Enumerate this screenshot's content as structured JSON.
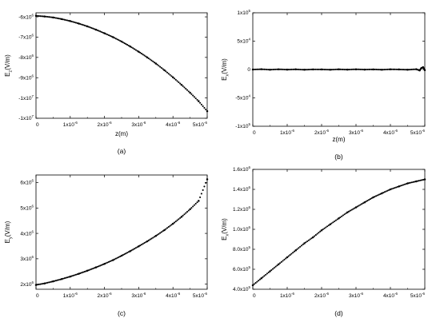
{
  "chart_data": [
    {
      "type": "scatter",
      "panel_label": "(a)",
      "xlabel": "z(m)",
      "ylabel": "E_z(V/m)",
      "ylabel_base": "E",
      "ylabel_sub": "z",
      "ylabel_unit": "(V/m)",
      "xlim": [
        0,
        5e-06
      ],
      "ylim": [
        -11000000,
        -5800000
      ],
      "x_ticks": [
        {
          "v": 0,
          "m": "0",
          "e": ""
        },
        {
          "v": 1e-06,
          "m": "1x10",
          "e": "-6"
        },
        {
          "v": 2e-06,
          "m": "2x10",
          "e": "-6"
        },
        {
          "v": 3e-06,
          "m": "3x10",
          "e": "-6"
        },
        {
          "v": 4e-06,
          "m": "4x10",
          "e": "-6"
        },
        {
          "v": 5e-06,
          "m": "5x10",
          "e": "-6"
        }
      ],
      "y_ticks": [
        {
          "v": -6000000,
          "m": "-6x10",
          "e": "6"
        },
        {
          "v": -7000000,
          "m": "-7x10",
          "e": "6"
        },
        {
          "v": -8000000,
          "m": "-8x10",
          "e": "6"
        },
        {
          "v": -9000000,
          "m": "-9x10",
          "e": "6"
        },
        {
          "v": -10000000,
          "m": "-1x10",
          "e": "7"
        },
        {
          "v": -11000000,
          "m": "-1x10",
          "e": "7"
        }
      ],
      "series": [
        {
          "x": [
            0,
            2.5e-07,
            5e-07,
            7.5e-07,
            1e-06,
            1.25e-06,
            1.5e-06,
            1.75e-06,
            2e-06,
            2.25e-06,
            2.5e-06,
            2.75e-06,
            3e-06,
            3.25e-06,
            3.5e-06,
            3.75e-06,
            4e-06,
            4.25e-06,
            4.5e-06,
            4.75e-06,
            5e-06
          ],
          "y": [
            -5950000,
            -5980000,
            -6030000,
            -6110000,
            -6210000,
            -6330000,
            -6470000,
            -6630000,
            -6810000,
            -7000000,
            -7220000,
            -7460000,
            -7720000,
            -8000000,
            -8300000,
            -8630000,
            -8980000,
            -9350000,
            -9740000,
            -10160000,
            -10650000
          ]
        }
      ]
    },
    {
      "type": "scatter",
      "panel_label": "(b)",
      "xlabel": "z(m)",
      "ylabel": "E_x(V/m)",
      "ylabel_base": "E",
      "ylabel_sub": "x",
      "ylabel_unit": "(V/m)",
      "xlim": [
        0,
        5e-06
      ],
      "ylim": [
        -100000,
        100000
      ],
      "x_ticks": [
        {
          "v": 0,
          "m": "0",
          "e": ""
        },
        {
          "v": 1e-06,
          "m": "1x10",
          "e": "-6"
        },
        {
          "v": 2e-06,
          "m": "2x10",
          "e": "-6"
        },
        {
          "v": 3e-06,
          "m": "3x10",
          "e": "-6"
        },
        {
          "v": 4e-06,
          "m": "4x10",
          "e": "-6"
        },
        {
          "v": 5e-06,
          "m": "5x10",
          "e": "-6"
        }
      ],
      "y_ticks": [
        {
          "v": 100000,
          "m": "1x10",
          "e": "5"
        },
        {
          "v": 50000,
          "m": "5x10",
          "e": "4"
        },
        {
          "v": 0,
          "m": "0",
          "e": ""
        },
        {
          "v": -50000,
          "m": "-5x10",
          "e": "4"
        },
        {
          "v": -100000,
          "m": "-1x10",
          "e": "5"
        }
      ],
      "series": [
        {
          "x": [
            0,
            2.5e-07,
            5e-07,
            7.5e-07,
            1e-06,
            1.25e-06,
            1.5e-06,
            1.75e-06,
            2e-06,
            2.25e-06,
            2.5e-06,
            2.75e-06,
            3e-06,
            3.25e-06,
            3.5e-06,
            3.75e-06,
            4e-06,
            4.25e-06,
            4.5e-06,
            4.75e-06,
            4.85e-06,
            4.9e-06,
            4.95e-06,
            5e-06
          ],
          "y": [
            0,
            500,
            -300,
            400,
            -200,
            300,
            -400,
            200,
            100,
            -300,
            300,
            -200,
            400,
            -100,
            200,
            -300,
            300,
            100,
            -400,
            500,
            -1500,
            2500,
            4000,
            -1000
          ]
        }
      ]
    },
    {
      "type": "scatter",
      "panel_label": "(c)",
      "xlabel": "",
      "ylabel": "E_y(V/m)",
      "ylabel_base": "E",
      "ylabel_sub": "y",
      "ylabel_unit": "(V/m)",
      "xlim": [
        0,
        5e-06
      ],
      "ylim": [
        1800000,
        6300000
      ],
      "x_ticks": [
        {
          "v": 0,
          "m": "0",
          "e": ""
        },
        {
          "v": 1e-06,
          "m": "1x10",
          "e": "-6"
        },
        {
          "v": 2e-06,
          "m": "2x10",
          "e": "-6"
        },
        {
          "v": 3e-06,
          "m": "3x10",
          "e": "-6"
        },
        {
          "v": 4e-06,
          "m": "4x10",
          "e": "-6"
        },
        {
          "v": 5e-06,
          "m": "5x10",
          "e": "-6"
        }
      ],
      "y_ticks": [
        {
          "v": 2000000,
          "m": "2x10",
          "e": "6"
        },
        {
          "v": 3000000,
          "m": "3x10",
          "e": "6"
        },
        {
          "v": 4000000,
          "m": "4x10",
          "e": "6"
        },
        {
          "v": 5000000,
          "m": "5x10",
          "e": "6"
        },
        {
          "v": 6000000,
          "m": "6x10",
          "e": "6"
        }
      ],
      "series": [
        {
          "x": [
            0,
            2.5e-07,
            5e-07,
            7.5e-07,
            1e-06,
            1.25e-06,
            1.5e-06,
            1.75e-06,
            2e-06,
            2.25e-06,
            2.5e-06,
            2.75e-06,
            3e-06,
            3.25e-06,
            3.5e-06,
            3.75e-06,
            4e-06,
            4.25e-06,
            4.5e-06,
            4.75e-06,
            5e-06
          ],
          "y": [
            1970000,
            2030000,
            2110000,
            2200000,
            2300000,
            2410000,
            2530000,
            2660000,
            2800000,
            2950000,
            3120000,
            3300000,
            3490000,
            3690000,
            3900000,
            4130000,
            4380000,
            4650000,
            4950000,
            5280000,
            6130000
          ]
        }
      ]
    },
    {
      "type": "scatter",
      "panel_label": "(d)",
      "xlabel": "",
      "ylabel": "E_x(V/m)",
      "ylabel_base": "E",
      "ylabel_sub": "x",
      "ylabel_unit": "(V/m)",
      "xlim": [
        0,
        5e-06
      ],
      "ylim": [
        400000,
        1600000
      ],
      "x_ticks": [
        {
          "v": 0,
          "m": "0",
          "e": ""
        },
        {
          "v": 1e-06,
          "m": "1x10",
          "e": "-6"
        },
        {
          "v": 2e-06,
          "m": "2x10",
          "e": "-6"
        },
        {
          "v": 3e-06,
          "m": "3x10",
          "e": "-6"
        },
        {
          "v": 4e-06,
          "m": "4x10",
          "e": "-6"
        },
        {
          "v": 5e-06,
          "m": "5x10",
          "e": "-6"
        }
      ],
      "y_ticks": [
        {
          "v": 400000,
          "m": "4.0x10",
          "e": "5"
        },
        {
          "v": 600000,
          "m": "6.0x10",
          "e": "5"
        },
        {
          "v": 800000,
          "m": "8.0x10",
          "e": "5"
        },
        {
          "v": 1000000,
          "m": "1.0x10",
          "e": "6"
        },
        {
          "v": 1200000,
          "m": "1.2x10",
          "e": "6"
        },
        {
          "v": 1400000,
          "m": "1.4x10",
          "e": "6"
        },
        {
          "v": 1600000,
          "m": "1.6x10",
          "e": "6"
        }
      ],
      "series": [
        {
          "x": [
            0,
            2.5e-07,
            5e-07,
            7.5e-07,
            1e-06,
            1.25e-06,
            1.5e-06,
            1.75e-06,
            2e-06,
            2.25e-06,
            2.5e-06,
            2.75e-06,
            3e-06,
            3.25e-06,
            3.5e-06,
            3.75e-06,
            4e-06,
            4.25e-06,
            4.5e-06,
            4.75e-06,
            5e-06
          ],
          "y": [
            440000,
            510000,
            580000,
            650000,
            720000,
            790000,
            860000,
            920000,
            990000,
            1050000,
            1110000,
            1170000,
            1220000,
            1270000,
            1320000,
            1360000,
            1400000,
            1430000,
            1460000,
            1480000,
            1500000
          ]
        }
      ]
    }
  ]
}
